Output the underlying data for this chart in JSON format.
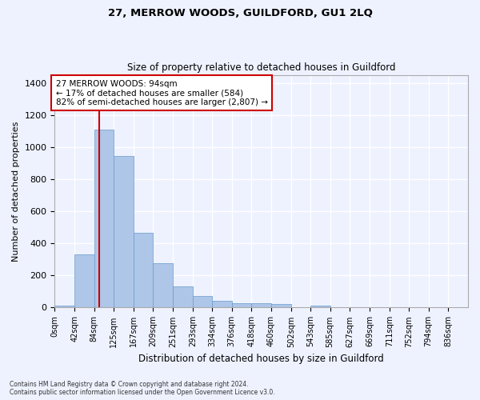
{
  "title1": "27, MERROW WOODS, GUILDFORD, GU1 2LQ",
  "title2": "Size of property relative to detached houses in Guildford",
  "xlabel": "Distribution of detached houses by size in Guildford",
  "ylabel": "Number of detached properties",
  "footnote1": "Contains HM Land Registry data © Crown copyright and database right 2024.",
  "footnote2": "Contains public sector information licensed under the Open Government Licence v3.0.",
  "bar_labels": [
    "0sqm",
    "42sqm",
    "84sqm",
    "125sqm",
    "167sqm",
    "209sqm",
    "251sqm",
    "293sqm",
    "334sqm",
    "376sqm",
    "418sqm",
    "460sqm",
    "502sqm",
    "543sqm",
    "585sqm",
    "627sqm",
    "669sqm",
    "711sqm",
    "752sqm",
    "794sqm",
    "836sqm"
  ],
  "hist_values": [
    10,
    330,
    1110,
    945,
    465,
    275,
    130,
    70,
    40,
    25,
    25,
    20,
    0,
    12,
    0,
    0,
    0,
    0,
    0,
    0,
    0
  ],
  "bin_edges": [
    0,
    42,
    84,
    125,
    167,
    209,
    251,
    293,
    334,
    376,
    418,
    460,
    502,
    543,
    585,
    627,
    669,
    711,
    752,
    794,
    836,
    878
  ],
  "bar_color": "#aec6e8",
  "bar_edgecolor": "#6699cc",
  "vline_x": 94,
  "vline_color": "#cc0000",
  "annotation_text": "27 MERROW WOODS: 94sqm\n← 17% of detached houses are smaller (584)\n82% of semi-detached houses are larger (2,807) →",
  "annotation_box_color": "#cc0000",
  "ylim": [
    0,
    1450
  ],
  "xlim": [
    0,
    878
  ],
  "background_color": "#eef2ff",
  "grid_color": "#ffffff",
  "yticks": [
    0,
    200,
    400,
    600,
    800,
    1000,
    1200,
    1400
  ]
}
